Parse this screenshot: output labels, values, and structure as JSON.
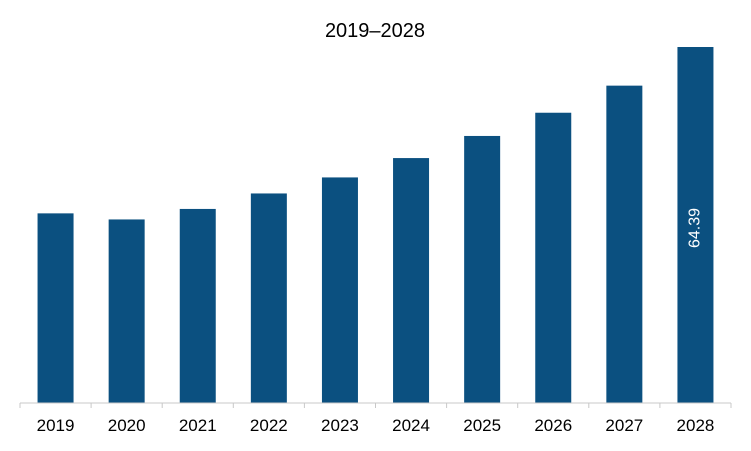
{
  "chart_data": {
    "type": "bar",
    "title": "2019–2028",
    "categories": [
      "2019",
      "2020",
      "2021",
      "2022",
      "2023",
      "2024",
      "2025",
      "2026",
      "2027",
      "2028"
    ],
    "values": [
      34.3,
      33.2,
      35.1,
      37.9,
      40.8,
      44.3,
      48.3,
      52.5,
      57.4,
      64.39
    ],
    "data_labels": [
      "",
      "",
      "",
      "",
      "",
      "",
      "",
      "",
      "",
      "64.39"
    ],
    "ylim": [
      0,
      65.5
    ],
    "grid": false,
    "legend": "none",
    "bar_color": "#0b5080"
  }
}
